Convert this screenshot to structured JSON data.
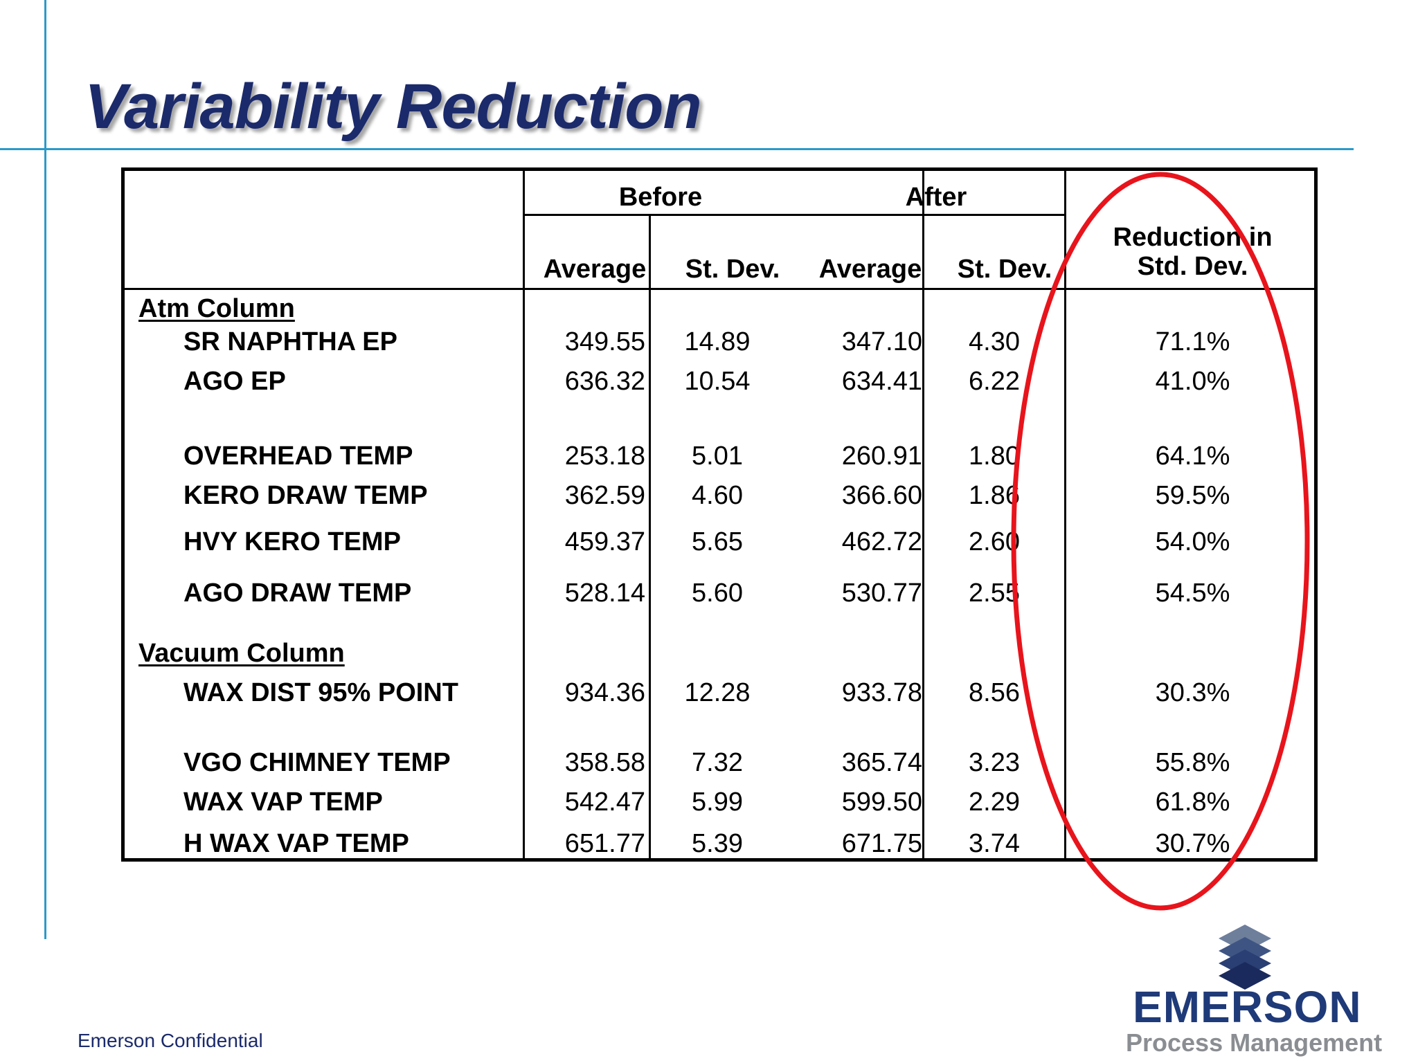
{
  "title": "Variability Reduction",
  "table": {
    "group_before": "Before",
    "group_after": "After",
    "col_avg": "Average",
    "col_stdev": "St. Dev.",
    "reduction_line1": "Reduction in",
    "reduction_line2": "Std. Dev.",
    "sections": [
      {
        "name": "Atm Column",
        "rows": [
          [
            "SR NAPHTHA EP",
            "349.55",
            "14.89",
            "347.10",
            "4.30",
            "71.1%"
          ],
          [
            "AGO EP",
            "636.32",
            "10.54",
            "634.41",
            "6.22",
            "41.0%"
          ],
          [
            "OVERHEAD TEMP",
            "253.18",
            "5.01",
            "260.91",
            "1.80",
            "64.1%"
          ],
          [
            "KERO DRAW TEMP",
            "362.59",
            "4.60",
            "366.60",
            "1.86",
            "59.5%"
          ],
          [
            "HVY KERO TEMP",
            "459.37",
            "5.65",
            "462.72",
            "2.60",
            "54.0%"
          ],
          [
            "AGO DRAW TEMP",
            "528.14",
            "5.60",
            "530.77",
            "2.55",
            "54.5%"
          ]
        ]
      },
      {
        "name": "Vacuum Column",
        "rows": [
          [
            "WAX DIST 95% POINT",
            "934.36",
            "12.28",
            "933.78",
            "8.56",
            "30.3%"
          ],
          [
            "VGO CHIMNEY TEMP",
            "358.58",
            "7.32",
            "365.74",
            "3.23",
            "55.8%"
          ],
          [
            "WAX VAP TEMP",
            "542.47",
            "5.99",
            "599.50",
            "2.29",
            "61.8%"
          ],
          [
            "H WAX VAP TEMP",
            "651.77",
            "5.39",
            "671.75",
            "3.74",
            "30.7%"
          ]
        ]
      }
    ]
  },
  "footer": {
    "confidential": "Emerson Confidential"
  },
  "logo": {
    "name": "EMERSON",
    "tagline": "Process Management",
    "icon": "emerson-stack-icon"
  },
  "colors": {
    "title": "#1b2a6b",
    "accent_line": "#2a9ac9",
    "highlight": "#e8141c",
    "logo_blue": "#1f3a78",
    "logo_gray": "#8a8d91"
  }
}
